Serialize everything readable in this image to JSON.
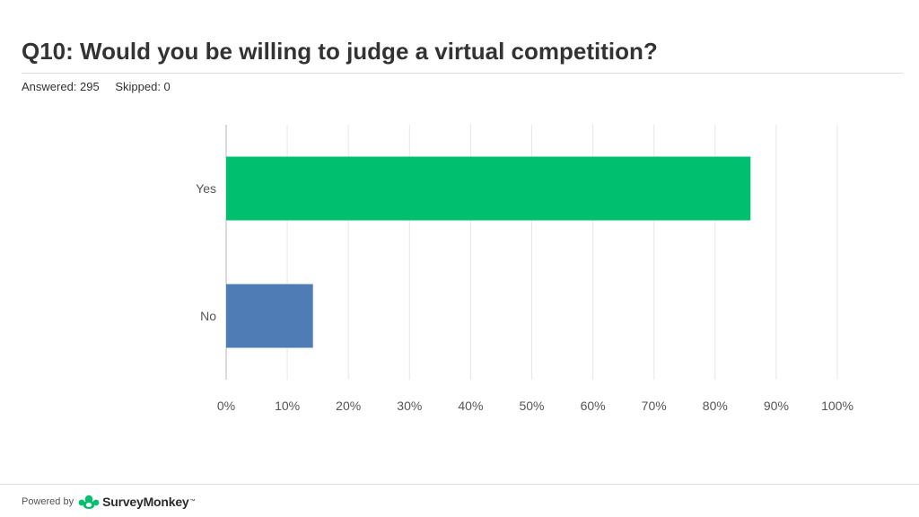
{
  "header": {
    "title": "Q10: Would you be willing to judge a virtual competition?",
    "answered": "Answered: 295",
    "skipped": "Skipped: 0"
  },
  "footer": {
    "powered_by": "Powered by",
    "brand": "SurveyMonkey",
    "trademark": "™",
    "logo_icon": "surveymonkey-logo-icon",
    "brand_color": "#00bf6f"
  },
  "chart_data": {
    "type": "bar",
    "orientation": "horizontal",
    "categories": [
      "Yes",
      "No"
    ],
    "values": [
      85.8,
      14.2
    ],
    "colors": [
      "#00bf6f",
      "#507cb6"
    ],
    "xlim": [
      0,
      100
    ],
    "x_ticks": [
      "0%",
      "10%",
      "20%",
      "30%",
      "40%",
      "50%",
      "60%",
      "70%",
      "80%",
      "90%",
      "100%"
    ],
    "grid": true
  }
}
